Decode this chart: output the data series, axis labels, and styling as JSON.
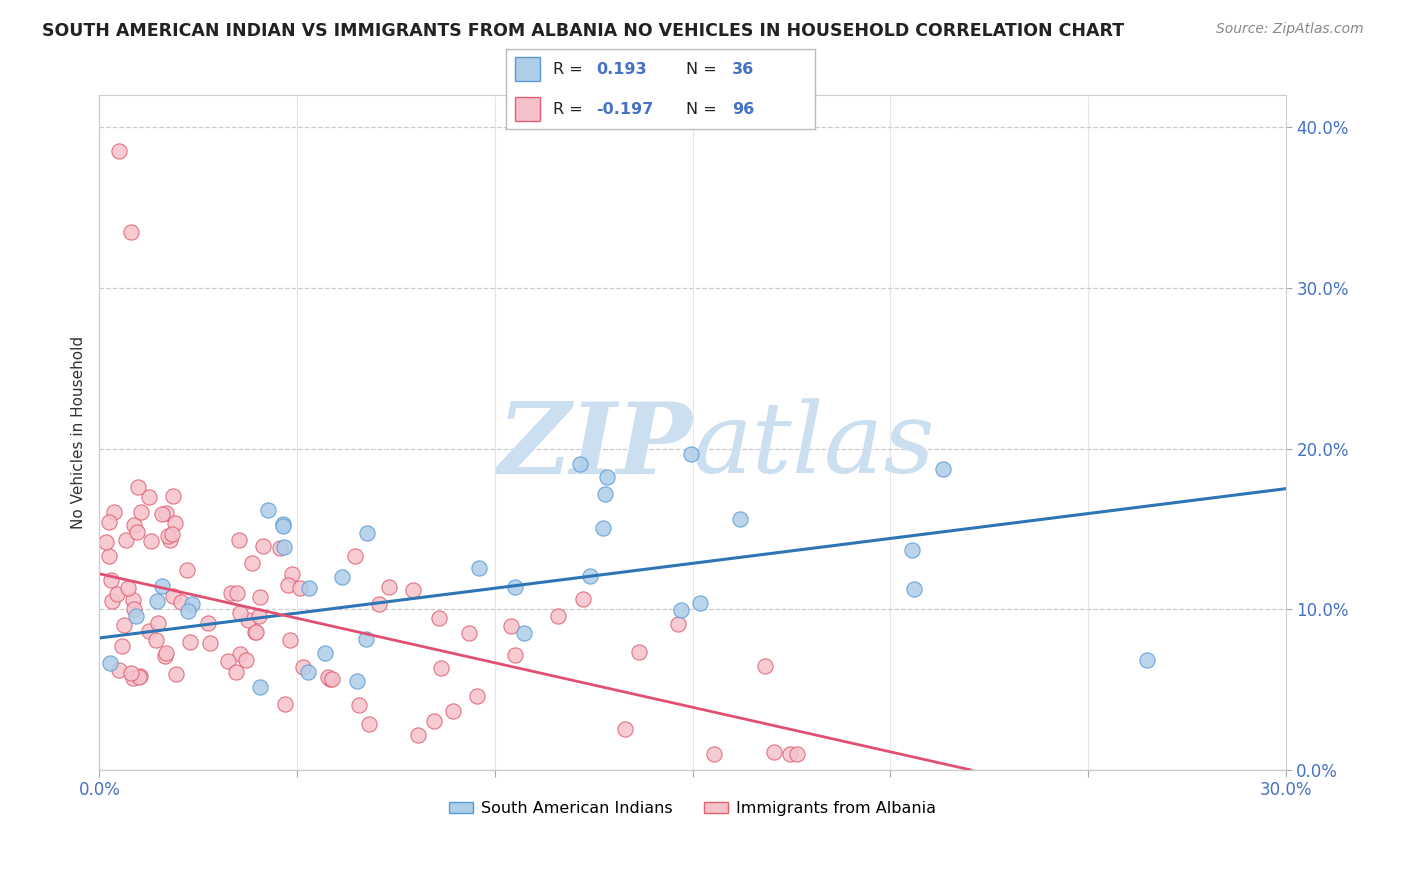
{
  "title": "SOUTH AMERICAN INDIAN VS IMMIGRANTS FROM ALBANIA NO VEHICLES IN HOUSEHOLD CORRELATION CHART",
  "source": "Source: ZipAtlas.com",
  "ylabel": "No Vehicles in Household",
  "ytick_vals": [
    0.0,
    0.1,
    0.2,
    0.3,
    0.4
  ],
  "xlim": [
    0.0,
    0.3
  ],
  "ylim": [
    0.0,
    0.42
  ],
  "blue_color": "#aecde8",
  "blue_edge": "#5b9bd5",
  "pink_color": "#f5c2cb",
  "pink_edge": "#e06070",
  "line_blue": "#2e75b6",
  "line_pink": "#e05070",
  "watermark_color": "#ccdff0",
  "legend_label1": "South American Indians",
  "legend_label2": "Immigrants from Albania",
  "background_color": "#ffffff",
  "grid_color": "#cccccc",
  "tick_color": "#4472c4",
  "blue_r": "0.193",
  "blue_n": "36",
  "pink_r": "-0.197",
  "pink_n": "96",
  "blue_line_y0": 0.082,
  "blue_line_y1": 0.175,
  "pink_line_y0": 0.122,
  "pink_line_y1": 0.0,
  "pink_line_x1": 0.22
}
